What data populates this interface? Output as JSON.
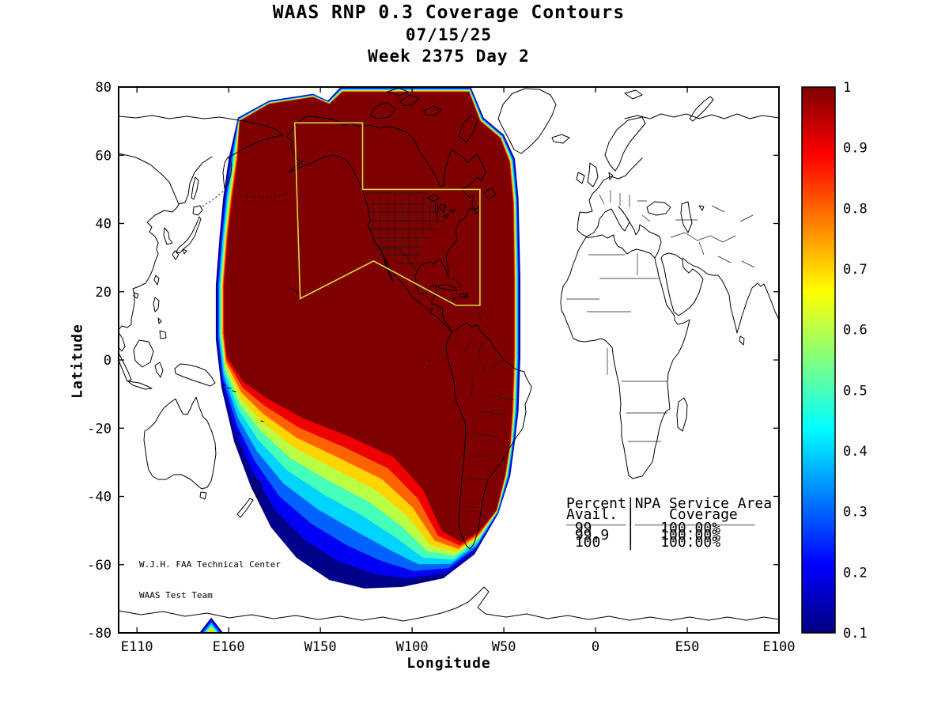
{
  "titles": {
    "line1": "WAAS RNP 0.3 Coverage Contours",
    "line2": "07/15/25",
    "line3": "Week 2375 Day 2"
  },
  "axis": {
    "x_label": "Longitude",
    "y_label": "Latitude"
  },
  "annotations": {
    "credit_line1": "W.J.H. FAA Technical Center",
    "credit_line2": "WAAS Test Team",
    "table": {
      "header1": "Percent|NPA Service Area",
      "header2": "Avail. |    Coverage",
      "separator": "_______|______________",
      "rows": [
        " 99    |   100.00%",
        " 99.9  |   100.00%",
        " 100   |   100.00%"
      ]
    }
  },
  "colors": {
    "coastline": "#000000",
    "service_area": "#D9D946",
    "background": "#FFFFFF"
  },
  "chart_data": {
    "type": "filled-contour-map",
    "title": "WAAS RNP 0.3 Coverage Contours",
    "date": "07/15/25",
    "week_day": "Week 2375 Day 2",
    "xlabel": "Longitude",
    "ylabel": "Latitude",
    "projection": "equirectangular, Pacific-centered, x spans 360 degrees eastward from 100E",
    "ylim": [
      -80,
      80
    ],
    "grid": false,
    "x_ticks": [
      {
        "label": "E110",
        "offset": 10
      },
      {
        "label": "E160",
        "offset": 60
      },
      {
        "label": "W150",
        "offset": 110
      },
      {
        "label": "W100",
        "offset": 160
      },
      {
        "label": "W50",
        "offset": 210
      },
      {
        "label": "0",
        "offset": 260
      },
      {
        "label": "E50",
        "offset": 310
      },
      {
        "label": "E100",
        "offset": 360
      }
    ],
    "y_ticks": [
      {
        "label": "80",
        "lat": 80
      },
      {
        "label": "60",
        "lat": 60
      },
      {
        "label": "40",
        "lat": 40
      },
      {
        "label": "20",
        "lat": 20
      },
      {
        "label": "0",
        "lat": 0
      },
      {
        "label": "-20",
        "lat": -20
      },
      {
        "label": "-40",
        "lat": -40
      },
      {
        "label": "-60",
        "lat": -60
      },
      {
        "label": "-80",
        "lat": -80
      }
    ],
    "colorbar": {
      "min": 0.1,
      "max": 1,
      "tick_labels": [
        "1",
        "0.9",
        "0.8",
        "0.7",
        "0.6",
        "0.5",
        "0.4",
        "0.3",
        "0.2",
        "0.1"
      ],
      "tick_values": [
        1,
        0.9,
        0.8,
        0.7,
        0.6,
        0.5,
        0.4,
        0.3,
        0.2,
        0.1
      ],
      "gradient_top_to_bottom": [
        {
          "pos": 0,
          "color": "#7F0000"
        },
        {
          "pos": 12.5,
          "color": "#FF0000"
        },
        {
          "pos": 37.5,
          "color": "#FFFF00"
        },
        {
          "pos": 62.5,
          "color": "#00FFFF"
        },
        {
          "pos": 87.5,
          "color": "#0000FF"
        },
        {
          "pos": 100,
          "color": "#00007F"
        }
      ]
    },
    "contour_levels": [
      0.1,
      0.2,
      0.3,
      0.4,
      0.5,
      0.6,
      0.7,
      0.8,
      0.9,
      1
    ],
    "contour_colors": [
      "#000089",
      "#0000F5",
      "#0063FF",
      "#00D4FF",
      "#46FFB8",
      "#B8FF46",
      "#FFD400",
      "#FF6300",
      "#EE0000",
      "#7F0000"
    ],
    "coverage_features": [
      {
        "name": "main-coverage-region",
        "level_t": [
          0,
          0.15,
          0.28,
          0.4,
          0.52,
          0.63,
          0.73,
          0.82,
          0.91,
          1
        ],
        "outer": [
          [
            65,
            71
          ],
          [
            82,
            76
          ],
          [
            106,
            78
          ],
          [
            114,
            76
          ],
          [
            121,
            80
          ],
          [
            192,
            80
          ],
          [
            199,
            71
          ],
          [
            210,
            66
          ],
          [
            216,
            59
          ],
          [
            218,
            47.5
          ],
          [
            219,
            24
          ],
          [
            219,
            1
          ],
          [
            218,
            -15
          ],
          [
            216,
            -24
          ],
          [
            213.5,
            -34
          ],
          [
            207,
            -45
          ],
          [
            194,
            -57
          ],
          [
            177,
            -64
          ],
          [
            155,
            -66.5
          ],
          [
            134,
            -67
          ],
          [
            115,
            -64.5
          ],
          [
            97,
            -58
          ],
          [
            83,
            -49
          ],
          [
            72,
            -37
          ],
          [
            63,
            -24
          ],
          [
            56,
            -8
          ],
          [
            53,
            6
          ],
          [
            53,
            22
          ],
          [
            55,
            36
          ],
          [
            57,
            47.5
          ],
          [
            60,
            59
          ]
        ],
        "inner": [
          [
            66,
            70
          ],
          [
            82,
            75
          ],
          [
            106,
            77
          ],
          [
            115,
            75
          ],
          [
            122,
            78.5
          ],
          [
            191,
            78.5
          ],
          [
            197,
            70
          ],
          [
            208,
            65
          ],
          [
            213,
            58
          ],
          [
            215,
            46
          ],
          [
            215.5,
            24
          ],
          [
            215.5,
            1
          ],
          [
            214.5,
            -15
          ],
          [
            213.5,
            -24
          ],
          [
            210.5,
            -34
          ],
          [
            206,
            -44
          ],
          [
            197,
            -50
          ],
          [
            187,
            -53.5
          ],
          [
            176,
            -50
          ],
          [
            166,
            -38
          ],
          [
            150,
            -28.5
          ],
          [
            126,
            -22.5
          ],
          [
            100,
            -17
          ],
          [
            80,
            -11
          ],
          [
            68,
            -6.5
          ],
          [
            59,
            1
          ],
          [
            57.5,
            8
          ],
          [
            57.5,
            22
          ],
          [
            59.5,
            36
          ],
          [
            62,
            47.5
          ],
          [
            65,
            59
          ]
        ]
      },
      {
        "name": "antarctic-spot",
        "level_t": [
          0,
          0.17,
          0.33,
          0.5,
          0.67,
          0.84,
          1
        ],
        "outer": [
          [
            44,
            -80
          ],
          [
            57,
            -80
          ],
          [
            50.5,
            -75.5
          ]
        ],
        "inner": [
          [
            48.5,
            -80
          ],
          [
            52.5,
            -80
          ],
          [
            50.5,
            -78.8
          ]
        ]
      }
    ],
    "service_area": {
      "name": "NPA Service Area outline",
      "color": "#D9D946",
      "points": [
        [
          96,
          69.5
        ],
        [
          133,
          69.5
        ],
        [
          133,
          50
        ],
        [
          197,
          50
        ],
        [
          197,
          16
        ],
        [
          184,
          16
        ],
        [
          139,
          29
        ],
        [
          99,
          18
        ]
      ]
    },
    "coverage_table": {
      "percent_avail": [
        "99",
        "99.9",
        "100"
      ],
      "npa_coverage": [
        "100.00%",
        "100.00%",
        "100.00%"
      ]
    }
  }
}
